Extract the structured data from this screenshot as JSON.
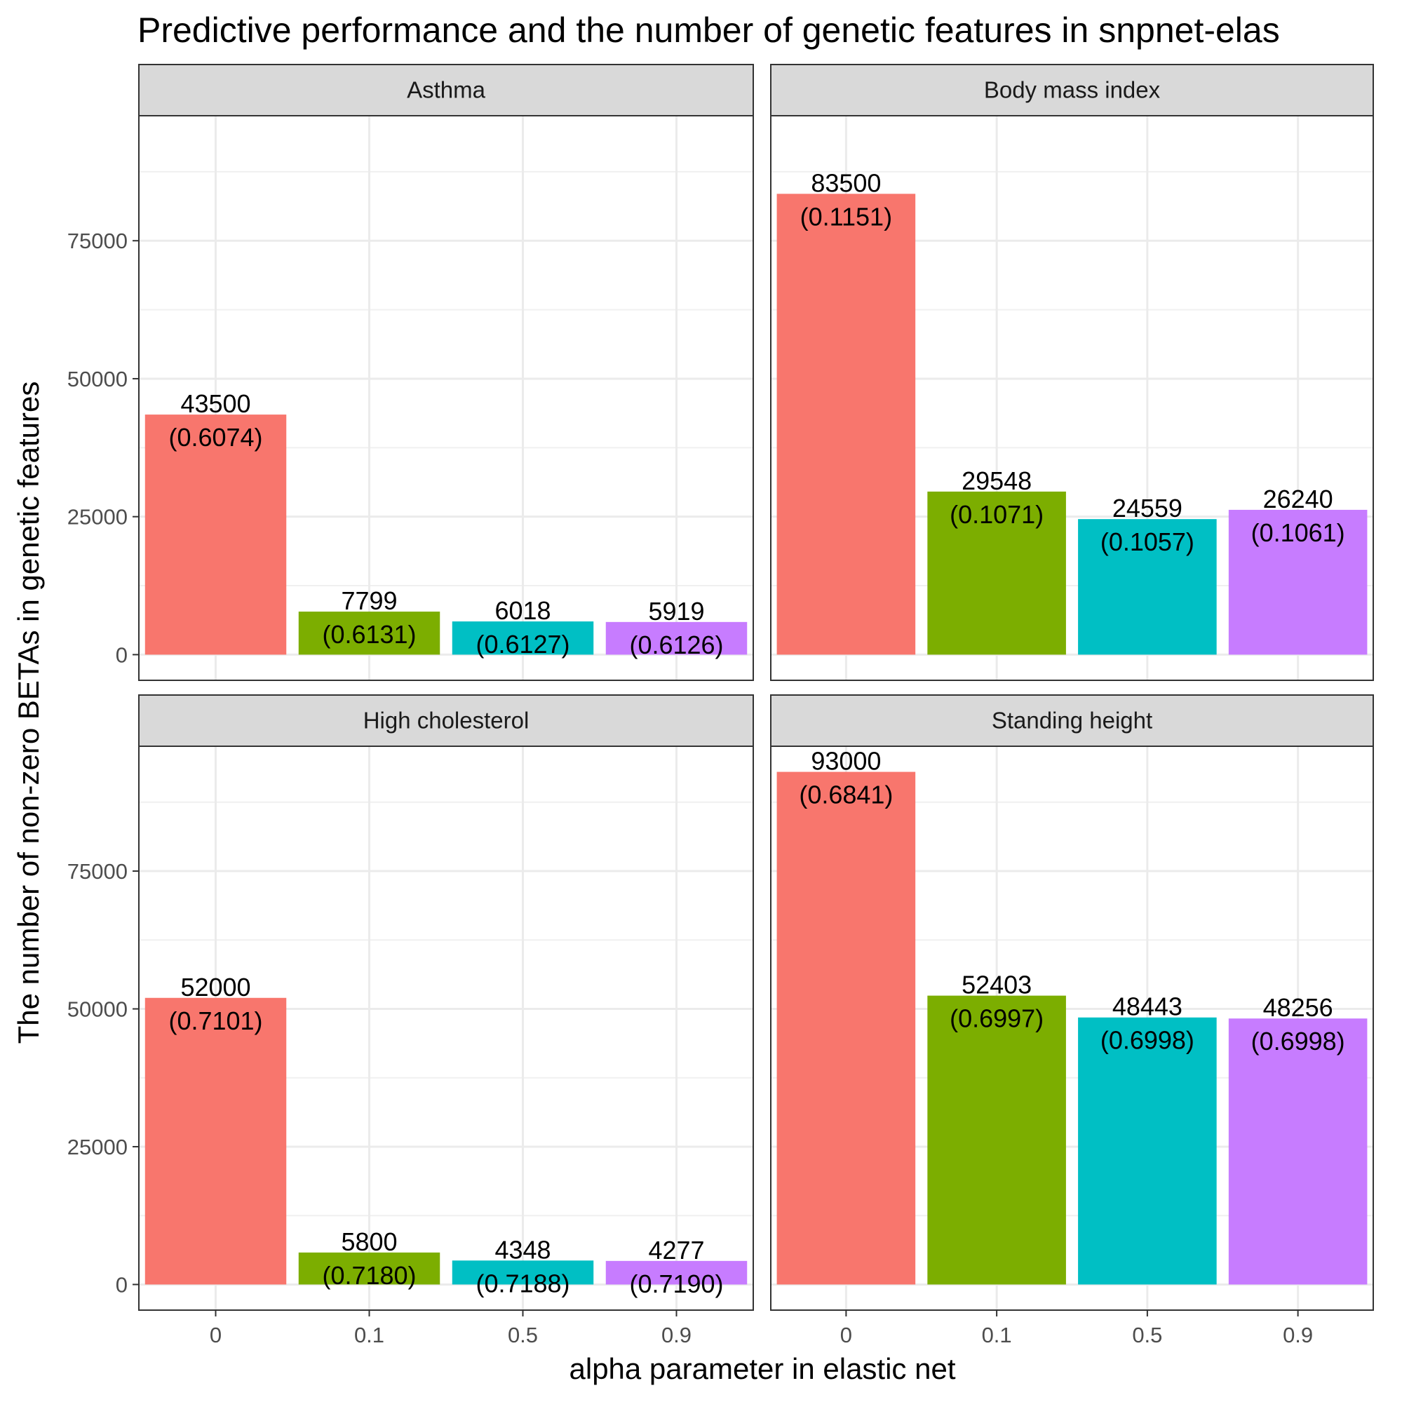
{
  "chart_data": {
    "type": "bar",
    "title": "Predictive performance and the number of genetic features in snpnet-elas",
    "xlabel": "alpha parameter in elastic net",
    "ylabel": "The number of non-zero BETAs in genetic features",
    "categories": [
      "0",
      "0.1",
      "0.5",
      "0.9"
    ],
    "ylim": [
      -4650,
      97650
    ],
    "yticks": [
      0,
      25000,
      50000,
      75000
    ],
    "grid": true,
    "legend": "none",
    "colors": [
      "#F8766D",
      "#7CAE00",
      "#00BFC4",
      "#C77CFF"
    ],
    "panels": [
      {
        "name": "Asthma",
        "values": [
          43500,
          7799,
          6018,
          5919
        ],
        "labels": [
          "43500",
          "7799",
          "6018",
          "5919"
        ],
        "metrics": [
          "(0.6074)",
          "(0.6131)",
          "(0.6127)",
          "(0.6126)"
        ]
      },
      {
        "name": "Body mass index",
        "values": [
          83500,
          29548,
          24559,
          26240
        ],
        "labels": [
          "83500",
          "29548",
          "24559",
          "26240"
        ],
        "metrics": [
          "(0.1151)",
          "(0.1071)",
          "(0.1057)",
          "(0.1061)"
        ]
      },
      {
        "name": "High cholesterol",
        "values": [
          52000,
          5800,
          4348,
          4277
        ],
        "labels": [
          "52000",
          "5800",
          "4348",
          "4277"
        ],
        "metrics": [
          "(0.7101)",
          "(0.7180)",
          "(0.7188)",
          "(0.7190)"
        ]
      },
      {
        "name": "Standing height",
        "values": [
          93000,
          52403,
          48443,
          48256
        ],
        "labels": [
          "93000",
          "52403",
          "48443",
          "48256"
        ],
        "metrics": [
          "(0.6841)",
          "(0.6997)",
          "(0.6998)",
          "(0.6998)"
        ]
      }
    ]
  }
}
